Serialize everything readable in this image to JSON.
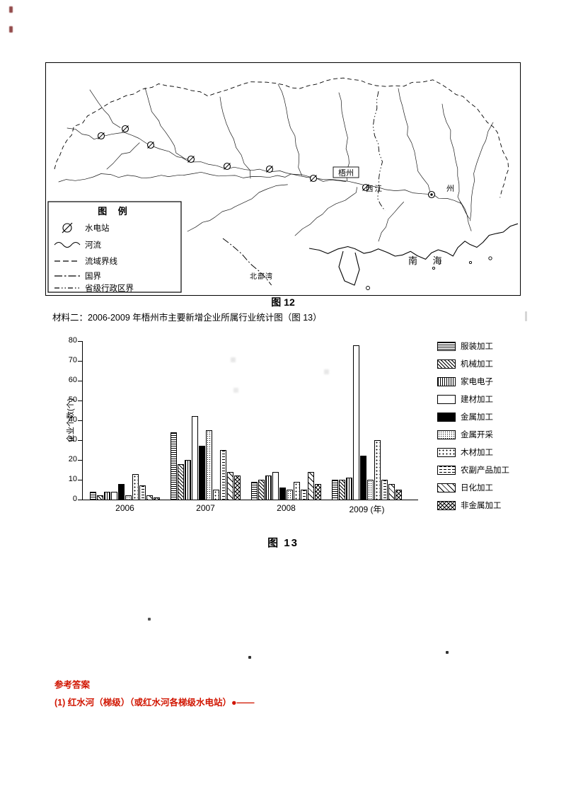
{
  "page": {
    "material_line": "材料二：2006-2009 年梧州市主要新增企业所属行业统计图（图 13）",
    "map_caption": "图 12",
    "chart_caption": "图 13"
  },
  "map": {
    "legend_title": "图 例",
    "legend_items": [
      {
        "label": "水电站",
        "symbol": "hydro-station-symbol"
      },
      {
        "label": "河流",
        "symbol": "river-line"
      },
      {
        "label": "流域界线",
        "symbol": "basin-boundary-dashed"
      },
      {
        "label": "国界",
        "symbol": "national-boundary-dash-dot"
      },
      {
        "label": "省级行政区界",
        "symbol": "provincial-boundary-dash-dot-dot"
      }
    ],
    "labels": [
      {
        "text": "梧州"
      },
      {
        "text": "西江"
      },
      {
        "text": "州"
      },
      {
        "text": "南  海"
      },
      {
        "text": "北部湾"
      }
    ]
  },
  "chart_data": {
    "type": "bar",
    "title": "2006-2009年梧州市主要新增企业所属行业统计图",
    "xlabel": "",
    "ylabel": "企业个数(个)",
    "ylim": [
      0,
      80
    ],
    "yticks": [
      0,
      10,
      20,
      30,
      40,
      50,
      60,
      70,
      80
    ],
    "grid": false,
    "legend_position": "right",
    "categories": [
      "2006",
      "2007",
      "2008",
      "2009"
    ],
    "x_tick_labels": [
      "2006",
      "2007",
      "2008",
      "2009 (年)"
    ],
    "series": [
      {
        "name": "服装加工",
        "pattern": "hlines",
        "values": [
          4,
          34,
          9,
          10
        ]
      },
      {
        "name": "机械加工",
        "pattern": "diag",
        "values": [
          2,
          18,
          10,
          10
        ]
      },
      {
        "name": "家电电子",
        "pattern": "vlines",
        "values": [
          4,
          20,
          12,
          11
        ]
      },
      {
        "name": "建材加工",
        "pattern": "plain",
        "values": [
          4,
          42,
          14,
          78
        ]
      },
      {
        "name": "金属加工",
        "pattern": "solid",
        "values": [
          8,
          27,
          6,
          22
        ]
      },
      {
        "name": "金属开采",
        "pattern": "dots",
        "values": [
          2,
          35,
          5,
          10
        ]
      },
      {
        "name": "木材加工",
        "pattern": "sparse-dots",
        "values": [
          13,
          5,
          9,
          30
        ]
      },
      {
        "name": "农副产品加工",
        "pattern": "hdash",
        "values": [
          7,
          25,
          5,
          10
        ]
      },
      {
        "name": "日化加工",
        "pattern": "diag-light",
        "values": [
          2,
          14,
          14,
          8
        ]
      },
      {
        "name": "非金属加工",
        "pattern": "cross",
        "values": [
          1,
          12,
          8,
          5
        ]
      }
    ]
  },
  "answers": {
    "heading": "参考答案",
    "line1": "(1) 红水河（梯级）（或红水河各梯级水电站）●——"
  }
}
